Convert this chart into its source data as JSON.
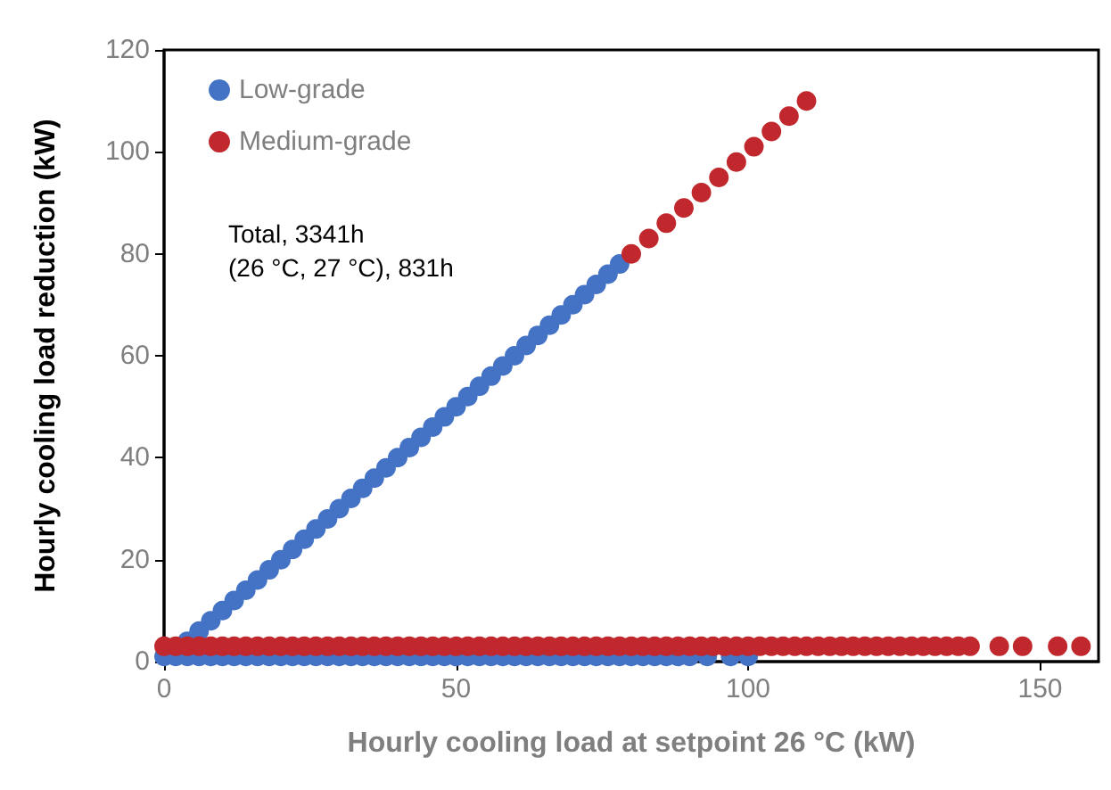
{
  "chart_data": {
    "type": "scatter",
    "xlabel": "Hourly cooling load at setpoint 26 °C (kW)",
    "ylabel": "Hourly cooling load reduction (kW)",
    "xlim": [
      0,
      160
    ],
    "xticks": [
      0,
      50,
      100,
      150
    ],
    "ylim": [
      0,
      120
    ],
    "yticks": [
      0,
      20,
      40,
      60,
      80,
      100,
      120
    ],
    "grid": false,
    "legend": "top left",
    "marker": "circle",
    "annotations": [
      "Total, 3341h",
      "(26 °C, 27 °C), 831h"
    ],
    "series": [
      {
        "name": "Low-grade",
        "color": "#4472c4",
        "x": [
          4,
          6,
          8,
          10,
          12,
          14,
          16,
          18,
          20,
          22,
          24,
          26,
          28,
          30,
          32,
          34,
          36,
          38,
          40,
          42,
          44,
          46,
          48,
          50,
          52,
          54,
          56,
          58,
          60,
          62,
          64,
          66,
          68,
          70,
          72,
          74,
          76,
          78,
          0,
          2,
          4,
          6,
          8,
          10,
          12,
          14,
          16,
          18,
          20,
          22,
          24,
          26,
          28,
          30,
          32,
          34,
          36,
          38,
          40,
          42,
          44,
          46,
          48,
          50,
          52,
          54,
          56,
          58,
          60,
          62,
          64,
          66,
          68,
          70,
          72,
          74,
          76,
          78,
          80,
          82,
          84,
          86,
          88,
          90,
          93,
          97,
          100
        ],
        "values": [
          4,
          6,
          8,
          10,
          12,
          14,
          16,
          18,
          20,
          22,
          24,
          26,
          28,
          30,
          32,
          34,
          36,
          38,
          40,
          42,
          44,
          46,
          48,
          50,
          52,
          54,
          56,
          58,
          60,
          62,
          64,
          66,
          68,
          70,
          72,
          74,
          76,
          78,
          1,
          1,
          1,
          1,
          1,
          1,
          1,
          1,
          1,
          1,
          1,
          1,
          1,
          1,
          1,
          1,
          1,
          1,
          1,
          1,
          1,
          1,
          1,
          1,
          1,
          1,
          1,
          1,
          1,
          1,
          1,
          1,
          1,
          1,
          1,
          1,
          1,
          1,
          1,
          1,
          1,
          1,
          1,
          1,
          1,
          1,
          1,
          1,
          1
        ]
      },
      {
        "name": "Medium-grade",
        "color": "#c0282d",
        "x": [
          0,
          2,
          4,
          6,
          8,
          10,
          12,
          14,
          16,
          18,
          20,
          22,
          24,
          26,
          28,
          30,
          32,
          34,
          36,
          38,
          40,
          42,
          44,
          46,
          48,
          50,
          52,
          54,
          56,
          58,
          60,
          62,
          64,
          66,
          68,
          70,
          72,
          74,
          76,
          78,
          80,
          82,
          84,
          86,
          88,
          90,
          92,
          94,
          96,
          98,
          100,
          102,
          104,
          106,
          108,
          110,
          112,
          114,
          116,
          118,
          120,
          122,
          124,
          126,
          128,
          130,
          132,
          134,
          136,
          138,
          143,
          147,
          153,
          157,
          80,
          83,
          86,
          89,
          92,
          95,
          98,
          101,
          104,
          107,
          110
        ],
        "values": [
          3,
          3,
          3,
          3,
          3,
          3,
          3,
          3,
          3,
          3,
          3,
          3,
          3,
          3,
          3,
          3,
          3,
          3,
          3,
          3,
          3,
          3,
          3,
          3,
          3,
          3,
          3,
          3,
          3,
          3,
          3,
          3,
          3,
          3,
          3,
          3,
          3,
          3,
          3,
          3,
          3,
          3,
          3,
          3,
          3,
          3,
          3,
          3,
          3,
          3,
          3,
          3,
          3,
          3,
          3,
          3,
          3,
          3,
          3,
          3,
          3,
          3,
          3,
          3,
          3,
          3,
          3,
          3,
          3,
          3,
          3,
          3,
          3,
          3,
          80,
          83,
          86,
          89,
          92,
          95,
          98,
          101,
          104,
          107,
          110
        ]
      }
    ]
  }
}
